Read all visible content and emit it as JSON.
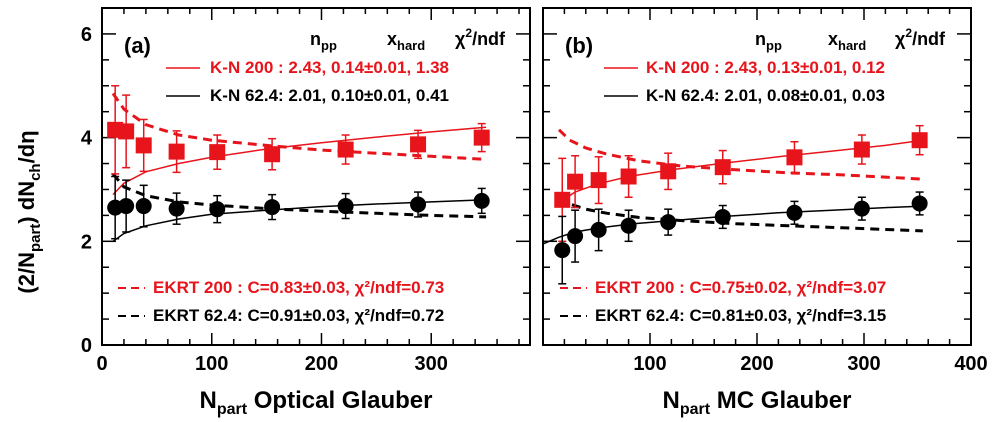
{
  "chart_data": [
    {
      "panel_label": "(a)",
      "type": "scatter",
      "xlabel": {
        "main": "N",
        "sub": "part",
        "rest": " Optical Glauber"
      },
      "ylabel": "(2/N_part) dN_ch/dη",
      "xlim": [
        0,
        390
      ],
      "ylim": [
        0,
        6.5
      ],
      "xticks": [
        0,
        100,
        200,
        300
      ],
      "yticks": [
        0,
        2,
        4,
        6
      ],
      "param_headers": [
        "n_pp",
        "x_hard",
        "χ²/ndf"
      ],
      "legend": {
        "kn200": "K-N 200 : 2.43, 0.14±0.01, 1.38",
        "kn62": "K-N 62.4: 2.01, 0.10±0.01, 0.41",
        "ekrt200": "EKRT 200 : C=0.83±0.03, χ²/ndf=0.73",
        "ekrt62": "EKRT 62.4: C=0.91±0.03, χ²/ndf=0.72"
      },
      "series": [
        {
          "name": "200",
          "marker": "square",
          "color": "#e8141c",
          "points": [
            [
              12,
              4.15,
              0.85
            ],
            [
              22,
              4.12,
              0.7
            ],
            [
              38,
              3.85,
              0.5
            ],
            [
              68,
              3.73,
              0.4
            ],
            [
              105,
              3.72,
              0.33
            ],
            [
              155,
              3.68,
              0.3
            ],
            [
              222,
              3.77,
              0.28
            ],
            [
              288,
              3.87,
              0.27
            ],
            [
              346,
              4.0,
              0.27
            ]
          ]
        },
        {
          "name": "62.4",
          "marker": "circle",
          "color": "#000000",
          "points": [
            [
              12,
              2.65,
              0.6
            ],
            [
              22,
              2.68,
              0.5
            ],
            [
              38,
              2.68,
              0.4
            ],
            [
              68,
              2.63,
              0.3
            ],
            [
              105,
              2.62,
              0.26
            ],
            [
              155,
              2.66,
              0.24
            ],
            [
              222,
              2.68,
              0.24
            ],
            [
              288,
              2.71,
              0.24
            ],
            [
              346,
              2.78,
              0.24
            ]
          ]
        }
      ],
      "curves": [
        {
          "kind": "kn",
          "color": "#e8141c",
          "style": "solid",
          "x": [
            10,
            20,
            40,
            70,
            100,
            150,
            200,
            250,
            300,
            350
          ],
          "y": [
            2.9,
            3.12,
            3.34,
            3.5,
            3.62,
            3.78,
            3.9,
            4.01,
            4.11,
            4.2
          ]
        },
        {
          "kind": "kn",
          "color": "#000000",
          "style": "solid",
          "x": [
            10,
            20,
            40,
            70,
            100,
            150,
            200,
            250,
            300,
            350
          ],
          "y": [
            2.0,
            2.15,
            2.3,
            2.43,
            2.52,
            2.6,
            2.67,
            2.72,
            2.76,
            2.8
          ]
        },
        {
          "kind": "ekrt",
          "color": "#e8141c",
          "style": "dashed",
          "x": [
            10,
            20,
            40,
            70,
            100,
            150,
            200,
            250,
            300,
            350
          ],
          "y": [
            4.85,
            4.55,
            4.25,
            4.05,
            3.95,
            3.85,
            3.76,
            3.7,
            3.64,
            3.58
          ]
        },
        {
          "kind": "ekrt",
          "color": "#000000",
          "style": "dashed",
          "x": [
            10,
            20,
            40,
            70,
            100,
            150,
            200,
            250,
            300,
            350
          ],
          "y": [
            3.3,
            3.05,
            2.88,
            2.76,
            2.7,
            2.63,
            2.58,
            2.54,
            2.5,
            2.47
          ]
        }
      ]
    },
    {
      "panel_label": "(b)",
      "type": "scatter",
      "xlabel": {
        "main": "N",
        "sub": "part",
        "rest": " MC Glauber"
      },
      "xlim": [
        0,
        400
      ],
      "ylim": [
        0,
        6.5
      ],
      "xticks": [
        100,
        200,
        300,
        400
      ],
      "yticks": [
        0,
        2,
        4,
        6
      ],
      "param_headers": [
        "n_pp",
        "x_hard",
        "χ²/ndf"
      ],
      "legend": {
        "kn200": "K-N 200 : 2.43, 0.13±0.01, 0.12",
        "kn62": "K-N 62.4: 2.01, 0.08±0.01, 0.03",
        "ekrt200": "EKRT 200 : C=0.75±0.02, χ²/ndf=3.07",
        "ekrt62": "EKRT 62.4: C=0.81±0.03, χ²/ndf=3.15"
      },
      "series": [
        {
          "name": "200",
          "marker": "square",
          "color": "#e8141c",
          "points": [
            [
              18,
              2.8,
              0.8
            ],
            [
              30,
              3.15,
              0.5
            ],
            [
              52,
              3.18,
              0.45
            ],
            [
              80,
              3.25,
              0.4
            ],
            [
              117,
              3.35,
              0.35
            ],
            [
              168,
              3.43,
              0.32
            ],
            [
              235,
              3.62,
              0.3
            ],
            [
              298,
              3.77,
              0.28
            ],
            [
              352,
              3.95,
              0.28
            ]
          ]
        },
        {
          "name": "62.4",
          "marker": "circle",
          "color": "#000000",
          "points": [
            [
              18,
              1.83,
              0.65
            ],
            [
              30,
              2.1,
              0.5
            ],
            [
              52,
              2.22,
              0.4
            ],
            [
              80,
              2.3,
              0.3
            ],
            [
              117,
              2.37,
              0.25
            ],
            [
              168,
              2.47,
              0.22
            ],
            [
              235,
              2.55,
              0.22
            ],
            [
              298,
              2.63,
              0.22
            ],
            [
              352,
              2.73,
              0.22
            ]
          ]
        }
      ],
      "curves": [
        {
          "kind": "kn",
          "color": "#e8141c",
          "style": "solid",
          "x": [
            15,
            30,
            50,
            80,
            120,
            170,
            220,
            270,
            320,
            355
          ],
          "y": [
            2.75,
            2.95,
            3.1,
            3.25,
            3.38,
            3.51,
            3.63,
            3.74,
            3.85,
            3.95
          ]
        },
        {
          "kind": "kn",
          "color": "#000000",
          "style": "solid",
          "x": [
            0,
            15,
            30,
            50,
            80,
            120,
            170,
            220,
            270,
            320,
            355
          ],
          "y": [
            1.95,
            2.08,
            2.18,
            2.25,
            2.33,
            2.4,
            2.48,
            2.55,
            2.6,
            2.65,
            2.68
          ]
        },
        {
          "kind": "ekrt",
          "color": "#e8141c",
          "style": "dashed",
          "x": [
            15,
            25,
            40,
            60,
            90,
            130,
            180,
            230,
            280,
            355
          ],
          "y": [
            4.15,
            3.95,
            3.8,
            3.68,
            3.55,
            3.45,
            3.38,
            3.32,
            3.28,
            3.2
          ]
        },
        {
          "kind": "ekrt",
          "color": "#000000",
          "style": "dashed",
          "x": [
            15,
            25,
            40,
            60,
            90,
            130,
            180,
            230,
            280,
            355
          ],
          "y": [
            2.85,
            2.72,
            2.62,
            2.54,
            2.46,
            2.4,
            2.34,
            2.3,
            2.26,
            2.2
          ]
        }
      ]
    }
  ]
}
